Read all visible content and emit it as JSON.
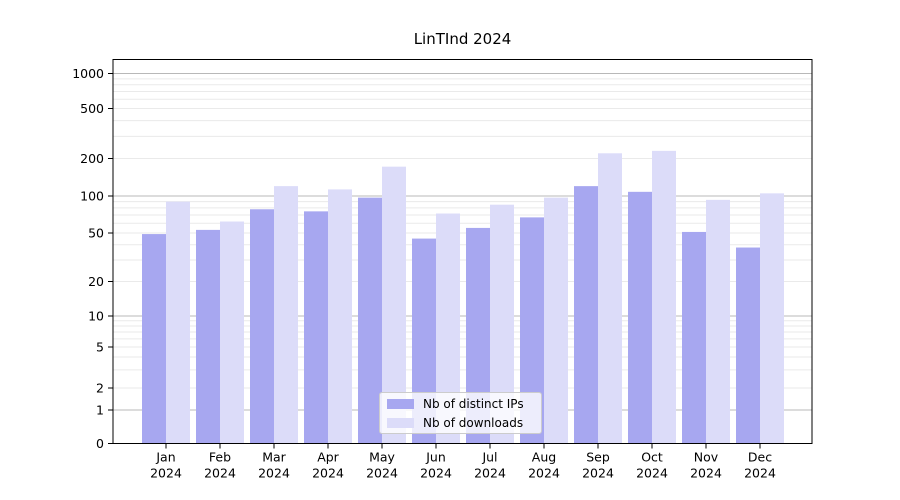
{
  "chart_data": {
    "type": "bar",
    "title": "LinTInd 2024",
    "y_scale": "symlog",
    "grid": true,
    "legend_position": "lower center",
    "x_tick_year": "2024",
    "x_tick_months": [
      "Jan",
      "Feb",
      "Mar",
      "Apr",
      "May",
      "Jun",
      "Jul",
      "Aug",
      "Sep",
      "Oct",
      "Nov",
      "Dec"
    ],
    "y_ticks": [
      0,
      1,
      2,
      5,
      10,
      20,
      50,
      100,
      200,
      500,
      1000
    ],
    "ylim": [
      0,
      1320
    ],
    "series": [
      {
        "name": "Nb of distinct IPs",
        "color": "#a7a7f0",
        "values": [
          49,
          53,
          78,
          75,
          97,
          45,
          55,
          67,
          120,
          108,
          51,
          38
        ]
      },
      {
        "name": "Nb of downloads",
        "color": "#dcdcf9",
        "values": [
          90,
          62,
          120,
          113,
          172,
          72,
          85,
          97,
          220,
          230,
          93,
          105
        ]
      }
    ],
    "colors": {
      "grid_major": "#b8b8b8",
      "grid_minor": "#eaeaea",
      "axis": "#000000",
      "tick_label": "#000000",
      "background": "#ffffff"
    }
  }
}
